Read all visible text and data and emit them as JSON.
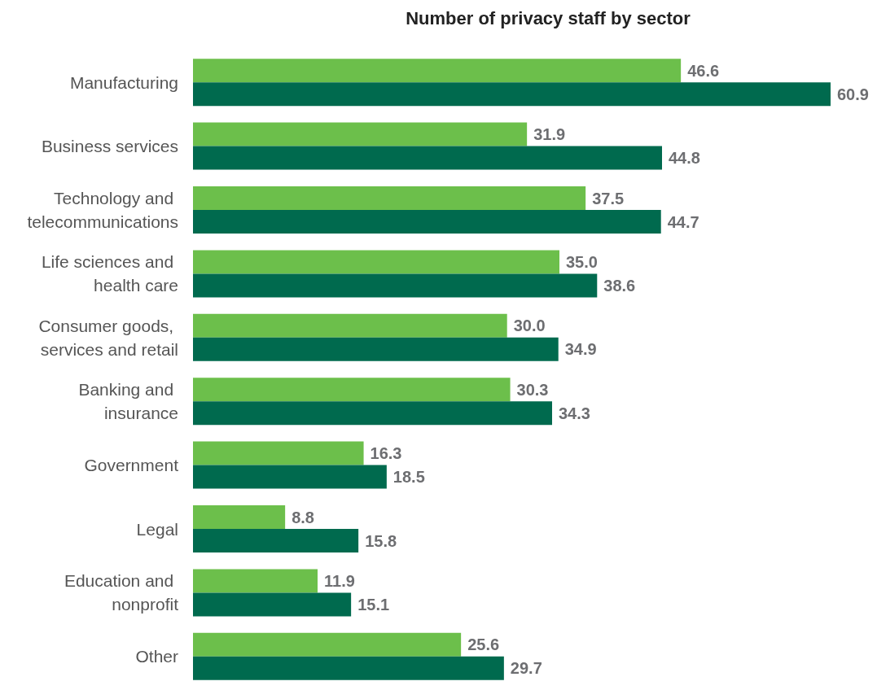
{
  "chart_data": {
    "type": "bar",
    "orientation": "horizontal",
    "title": "Number of privacy staff by sector",
    "categories": [
      "Manufacturing",
      "Business services",
      "Technology and telecommunications",
      "Life sciences and health care",
      "Consumer goods, services and retail",
      "Banking and insurance",
      "Government",
      "Legal",
      "Education and nonprofit",
      "Other"
    ],
    "series": [
      {
        "color": "#6cbf4b",
        "values": [
          46.6,
          31.9,
          37.5,
          35.0,
          30.0,
          30.3,
          16.3,
          8.8,
          11.9,
          25.6
        ],
        "value_labels": [
          "46.6",
          "31.9",
          "37.5",
          "35.0",
          "30.0",
          "30.3",
          "16.3",
          "8.8",
          "11.9",
          "25.6"
        ]
      },
      {
        "color": "#006a4e",
        "values": [
          60.9,
          44.8,
          44.7,
          38.6,
          34.9,
          34.3,
          18.5,
          15.8,
          15.1,
          29.7
        ],
        "value_labels": [
          "60.9",
          "44.8",
          "44.7",
          "38.6",
          "34.9",
          "34.3",
          "18.5",
          "15.8",
          "15.1",
          "29.7"
        ]
      }
    ],
    "tick_labels": "y"
  }
}
